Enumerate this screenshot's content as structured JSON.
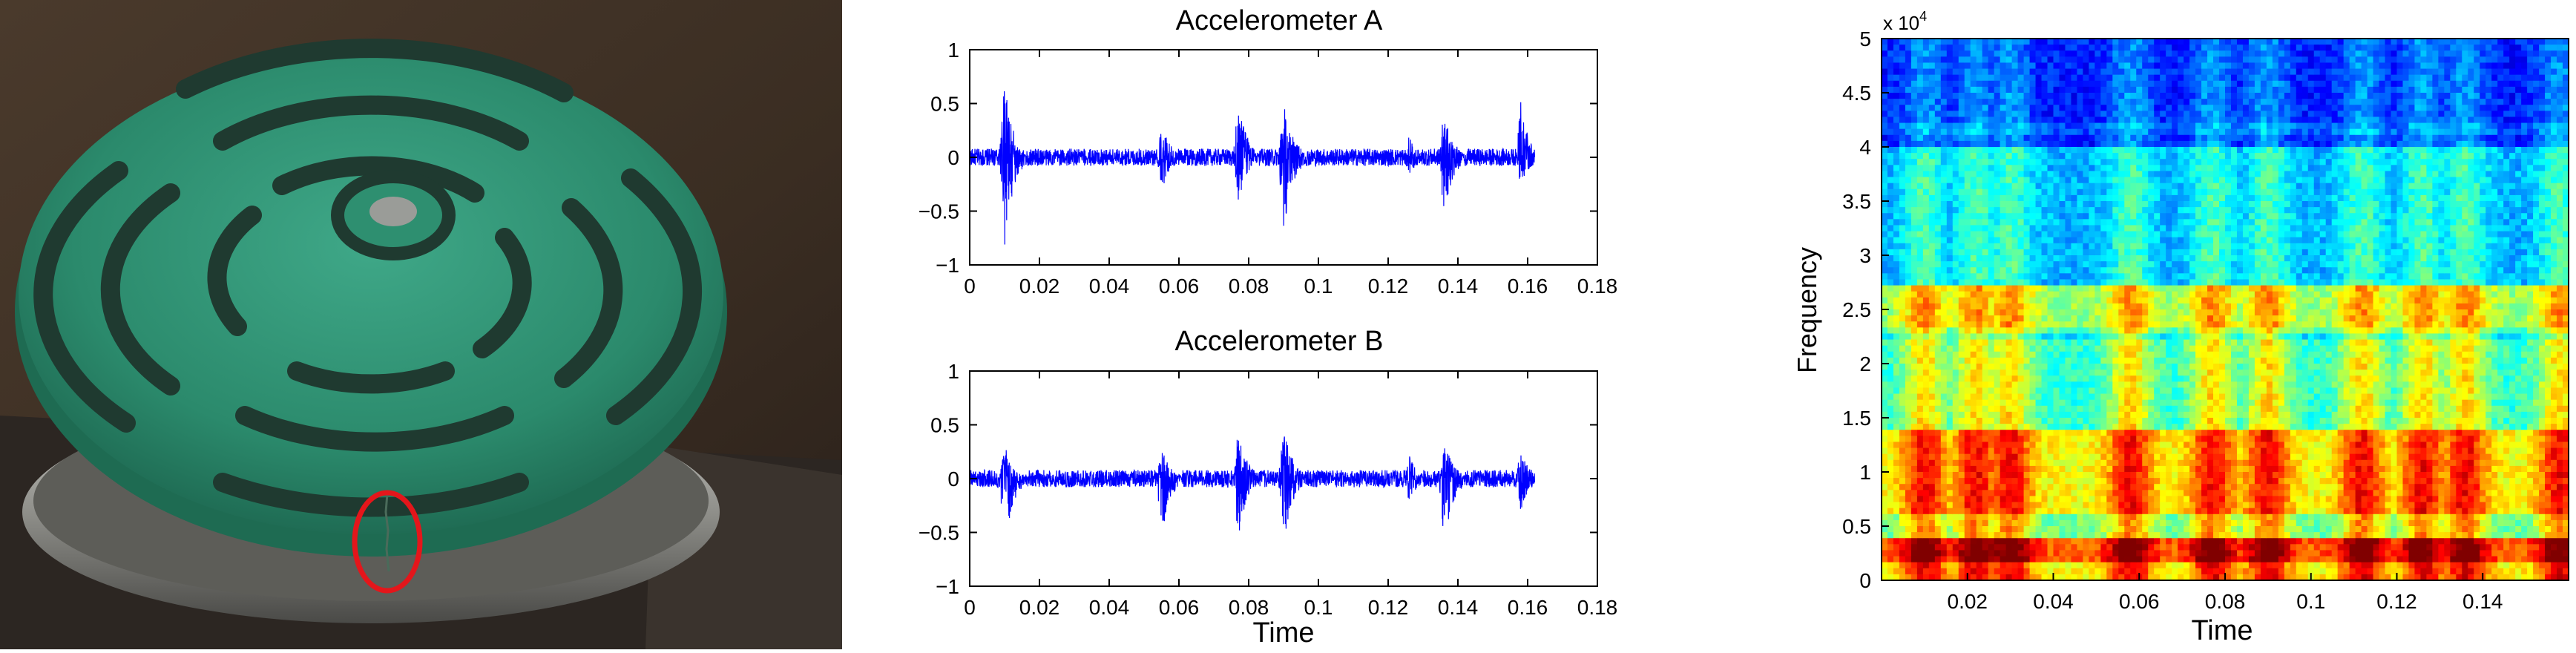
{
  "photo": {
    "description_icon": "green-valve-plate-photo",
    "highlight_color": "#e4161b"
  },
  "chart_data": [
    {
      "type": "line",
      "title": "Accelerometer A",
      "xlabel": "",
      "ylabel": "",
      "xlim": [
        0,
        0.18
      ],
      "ylim": [
        -1,
        1
      ],
      "xticks": [
        "0",
        "0.02",
        "0.04",
        "0.06",
        "0.08",
        "0.1",
        "0.12",
        "0.14",
        "0.16",
        "0.18"
      ],
      "yticks": [
        "1",
        "0.5",
        "0",
        "−0.5",
        "−1"
      ],
      "color": "#0000ff",
      "signal_end": 0.162,
      "bursts": [
        {
          "t": 0.01,
          "peak_pos": 0.7,
          "peak_neg": -0.85
        },
        {
          "t": 0.055,
          "peak_pos": 0.32,
          "peak_neg": -0.35
        },
        {
          "t": 0.077,
          "peak_pos": 0.55,
          "peak_neg": -0.45
        },
        {
          "t": 0.09,
          "peak_pos": 0.62,
          "peak_neg": -0.78
        },
        {
          "t": 0.126,
          "peak_pos": 0.2,
          "peak_neg": -0.2
        },
        {
          "t": 0.136,
          "peak_pos": 0.47,
          "peak_neg": -0.6
        },
        {
          "t": 0.158,
          "peak_pos": 0.52,
          "peak_neg": -0.3
        }
      ],
      "grid": false
    },
    {
      "type": "line",
      "title": "Accelerometer B",
      "xlabel": "Time",
      "ylabel": "",
      "xlim": [
        0,
        0.18
      ],
      "ylim": [
        -1,
        1
      ],
      "xticks": [
        "0",
        "0.02",
        "0.04",
        "0.06",
        "0.08",
        "0.1",
        "0.12",
        "0.14",
        "0.16",
        "0.18"
      ],
      "yticks": [
        "1",
        "0.5",
        "0",
        "−0.5",
        "−1"
      ],
      "color": "#0000ff",
      "signal_end": 0.162,
      "bursts": [
        {
          "t": 0.01,
          "peak_pos": 0.33,
          "peak_neg": -0.65
        },
        {
          "t": 0.055,
          "peak_pos": 0.3,
          "peak_neg": -0.55
        },
        {
          "t": 0.077,
          "peak_pos": 0.48,
          "peak_neg": -0.6
        },
        {
          "t": 0.09,
          "peak_pos": 0.55,
          "peak_neg": -0.68
        },
        {
          "t": 0.126,
          "peak_pos": 0.22,
          "peak_neg": -0.22
        },
        {
          "t": 0.136,
          "peak_pos": 0.4,
          "peak_neg": -0.7
        },
        {
          "t": 0.158,
          "peak_pos": 0.28,
          "peak_neg": -0.3
        }
      ],
      "grid": false
    },
    {
      "type": "heatmap",
      "title": "",
      "xlabel": "Time",
      "ylabel": "Frequency",
      "xlim": [
        0,
        0.16
      ],
      "ylim": [
        0,
        50000
      ],
      "xticks": [
        "0.02",
        "0.04",
        "0.06",
        "0.08",
        "0.1",
        "0.12",
        "0.14"
      ],
      "yticks": [
        "5",
        "4.5",
        "4",
        "3.5",
        "3",
        "2.5",
        "2",
        "1.5",
        "1",
        "0.5",
        "0"
      ],
      "yscale_label": "x 10",
      "yscale_exponent": "4",
      "colormap": "jet",
      "event_times": [
        0.01,
        0.022,
        0.03,
        0.058,
        0.077,
        0.09,
        0.112,
        0.126,
        0.136,
        0.158
      ]
    }
  ]
}
